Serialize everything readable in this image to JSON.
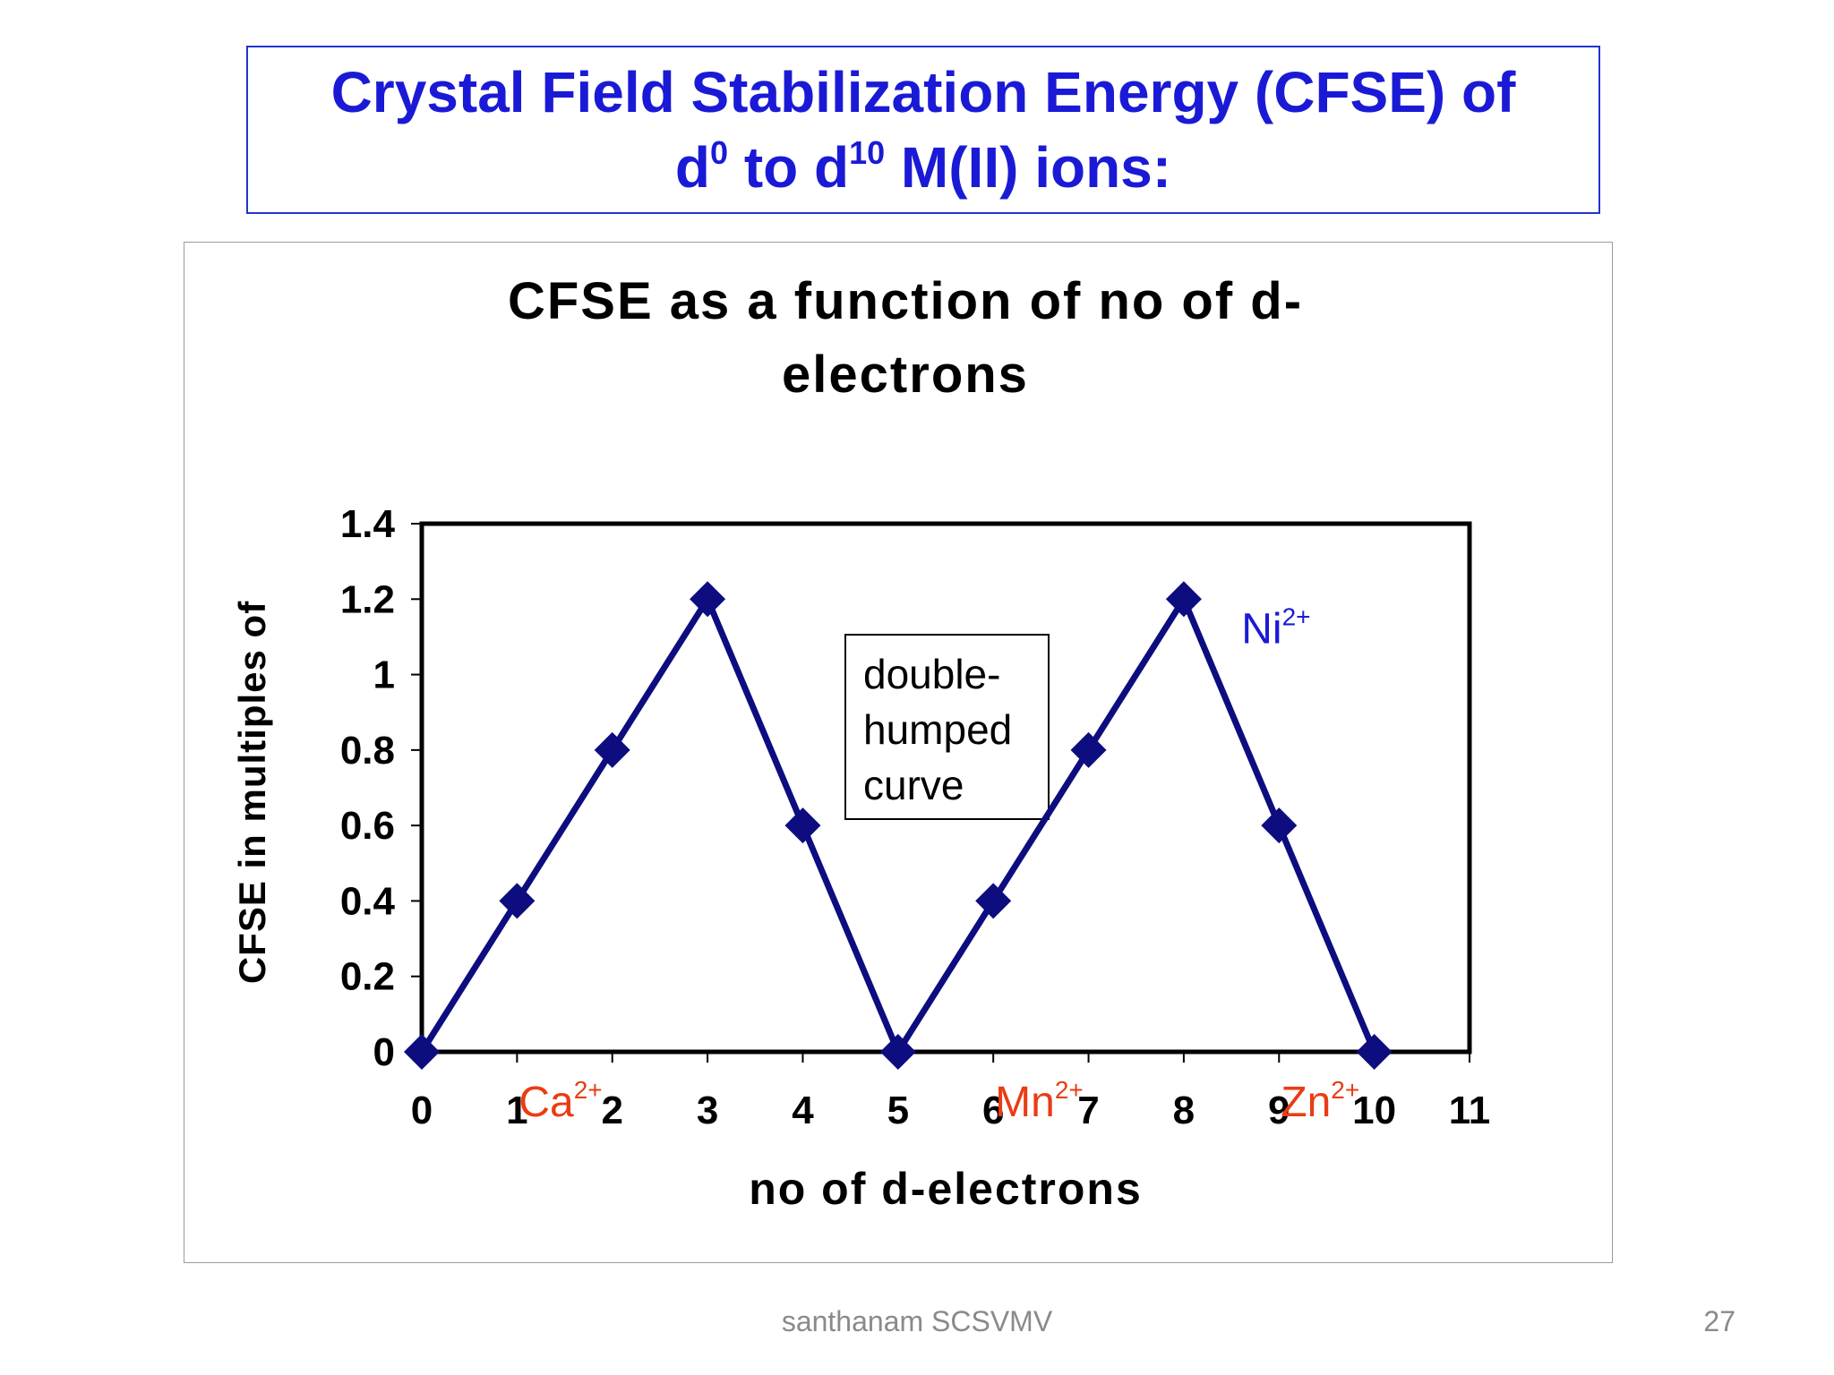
{
  "slide": {
    "title_line1": "Crystal Field Stabilization Energy (CFSE) of",
    "title_d": "d",
    "title_sup0": "0",
    "title_to": " to d",
    "title_sup10": "10",
    "title_rest": " M(II) ions:",
    "footer": "santhanam SCSVMV",
    "page_number": "27",
    "title_color": "#1a1ad6"
  },
  "chart_data": {
    "type": "line",
    "title_line1": "CFSE as a function of no of d-",
    "title_line2": "electrons",
    "xlabel": "no of d-electrons",
    "ylabel": "CFSE in multiples of",
    "xlim": [
      0,
      11
    ],
    "ylim": [
      0,
      1.4
    ],
    "x_ticks": [
      "0",
      "1",
      "2",
      "3",
      "4",
      "5",
      "6",
      "7",
      "8",
      "9",
      "10",
      "11"
    ],
    "y_ticks": [
      "0",
      "0.2",
      "0.4",
      "0.6",
      "0.8",
      "1",
      "1.2",
      "1.4"
    ],
    "series": [
      {
        "x": [
          0,
          1,
          2,
          3,
          4,
          5,
          6,
          7,
          8,
          9,
          10
        ],
        "values": [
          0,
          0.4,
          0.8,
          1.2,
          0.6,
          0,
          0.4,
          0.8,
          1.2,
          0.6,
          0
        ],
        "color": "#0d0d80",
        "marker": "diamond"
      }
    ],
    "grid": false,
    "annotation_box": "double-\nhumped\ncurve",
    "ion_labels": [
      {
        "ion": "Ca",
        "charge": "2+",
        "x": 1,
        "color": "#ea3c14",
        "at": "x-axis"
      },
      {
        "ion": "Mn",
        "charge": "2+",
        "x": 6,
        "color": "#ea3c14",
        "at": "x-axis"
      },
      {
        "ion": "Zn",
        "charge": "2+",
        "x": 9,
        "color": "#ea3c14",
        "at": "x-axis"
      },
      {
        "ion": "Ni",
        "charge": "2+",
        "x": 9,
        "y": 1.15,
        "color": "#1a1ad6",
        "at": "plot"
      }
    ]
  }
}
